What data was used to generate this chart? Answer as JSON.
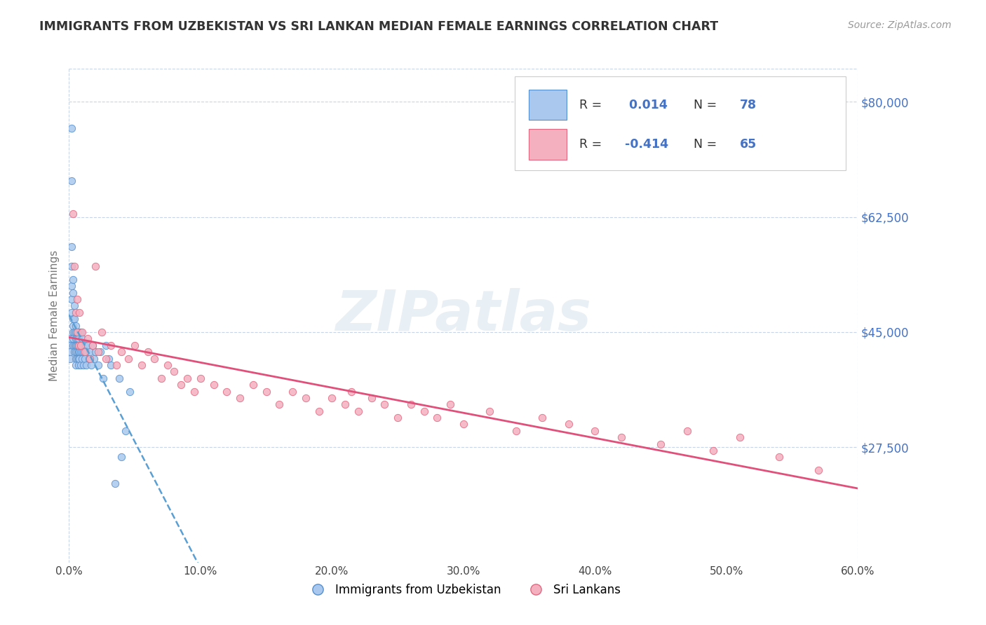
{
  "title": "IMMIGRANTS FROM UZBEKISTAN VS SRI LANKAN MEDIAN FEMALE EARNINGS CORRELATION CHART",
  "source": "Source: ZipAtlas.com",
  "ylabel": "Median Female Earnings",
  "xlim": [
    0.0,
    0.6
  ],
  "ylim": [
    10000,
    85000
  ],
  "yticks": [
    27500,
    45000,
    62500,
    80000
  ],
  "xticks": [
    0.0,
    0.1,
    0.2,
    0.3,
    0.4,
    0.5,
    0.6
  ],
  "xtick_labels": [
    "0.0%",
    "10.0%",
    "20.0%",
    "30.0%",
    "40.0%",
    "50.0%",
    "60.0%"
  ],
  "ytick_labels": [
    "$27,500",
    "$45,000",
    "$62,500",
    "$80,000"
  ],
  "series1_color": "#aac8ee",
  "series1_edge": "#5590cc",
  "series2_color": "#f5b0c0",
  "series2_edge": "#e06880",
  "trend1_color": "#5a9fd4",
  "trend2_color": "#e0507a",
  "R1": 0.014,
  "N1": 78,
  "R2": -0.414,
  "N2": 65,
  "legend_label1": "Immigrants from Uzbekistan",
  "legend_label2": "Sri Lankans",
  "watermark": "ZIPatlas",
  "uzbek_x": [
    0.001,
    0.001,
    0.001,
    0.001,
    0.002,
    0.002,
    0.002,
    0.002,
    0.002,
    0.002,
    0.002,
    0.003,
    0.003,
    0.003,
    0.003,
    0.003,
    0.003,
    0.003,
    0.004,
    0.004,
    0.004,
    0.004,
    0.004,
    0.005,
    0.005,
    0.005,
    0.005,
    0.005,
    0.005,
    0.005,
    0.005,
    0.006,
    0.006,
    0.006,
    0.006,
    0.006,
    0.006,
    0.007,
    0.007,
    0.007,
    0.007,
    0.007,
    0.008,
    0.008,
    0.008,
    0.008,
    0.009,
    0.009,
    0.009,
    0.009,
    0.01,
    0.01,
    0.01,
    0.01,
    0.011,
    0.011,
    0.012,
    0.012,
    0.013,
    0.013,
    0.014,
    0.015,
    0.016,
    0.017,
    0.018,
    0.019,
    0.02,
    0.022,
    0.024,
    0.026,
    0.028,
    0.03,
    0.032,
    0.035,
    0.038,
    0.04,
    0.043,
    0.046
  ],
  "uzbek_y": [
    44000,
    43000,
    42000,
    41000,
    68000,
    76000,
    58000,
    55000,
    52000,
    50000,
    48000,
    47000,
    51000,
    53000,
    45000,
    44000,
    46000,
    43000,
    49000,
    47000,
    43000,
    42000,
    45000,
    46000,
    44000,
    43000,
    42000,
    45000,
    43000,
    41000,
    40000,
    44000,
    43000,
    42000,
    45000,
    41000,
    43000,
    44000,
    42000,
    43000,
    41000,
    40000,
    43000,
    42000,
    45000,
    41000,
    43000,
    42000,
    45000,
    40000,
    43000,
    42000,
    41000,
    44000,
    42000,
    40000,
    43000,
    41000,
    42000,
    40000,
    43000,
    41000,
    42000,
    40000,
    43000,
    41000,
    42000,
    40000,
    42000,
    38000,
    43000,
    41000,
    40000,
    22000,
    38000,
    26000,
    30000,
    36000
  ],
  "srilanka_x": [
    0.003,
    0.004,
    0.005,
    0.006,
    0.006,
    0.007,
    0.008,
    0.009,
    0.01,
    0.012,
    0.014,
    0.016,
    0.018,
    0.02,
    0.022,
    0.025,
    0.028,
    0.032,
    0.036,
    0.04,
    0.045,
    0.05,
    0.055,
    0.06,
    0.065,
    0.07,
    0.075,
    0.08,
    0.085,
    0.09,
    0.095,
    0.1,
    0.11,
    0.12,
    0.13,
    0.14,
    0.15,
    0.16,
    0.17,
    0.18,
    0.19,
    0.2,
    0.21,
    0.215,
    0.22,
    0.23,
    0.24,
    0.25,
    0.26,
    0.27,
    0.28,
    0.29,
    0.3,
    0.32,
    0.34,
    0.36,
    0.38,
    0.4,
    0.42,
    0.45,
    0.47,
    0.49,
    0.51,
    0.54,
    0.57
  ],
  "srilanka_y": [
    63000,
    55000,
    48000,
    50000,
    45000,
    43000,
    48000,
    43000,
    45000,
    42000,
    44000,
    41000,
    43000,
    55000,
    42000,
    45000,
    41000,
    43000,
    40000,
    42000,
    41000,
    43000,
    40000,
    42000,
    41000,
    38000,
    40000,
    39000,
    37000,
    38000,
    36000,
    38000,
    37000,
    36000,
    35000,
    37000,
    36000,
    34000,
    36000,
    35000,
    33000,
    35000,
    34000,
    36000,
    33000,
    35000,
    34000,
    32000,
    34000,
    33000,
    32000,
    34000,
    31000,
    33000,
    30000,
    32000,
    31000,
    30000,
    29000,
    28000,
    30000,
    27000,
    29000,
    26000,
    24000
  ]
}
